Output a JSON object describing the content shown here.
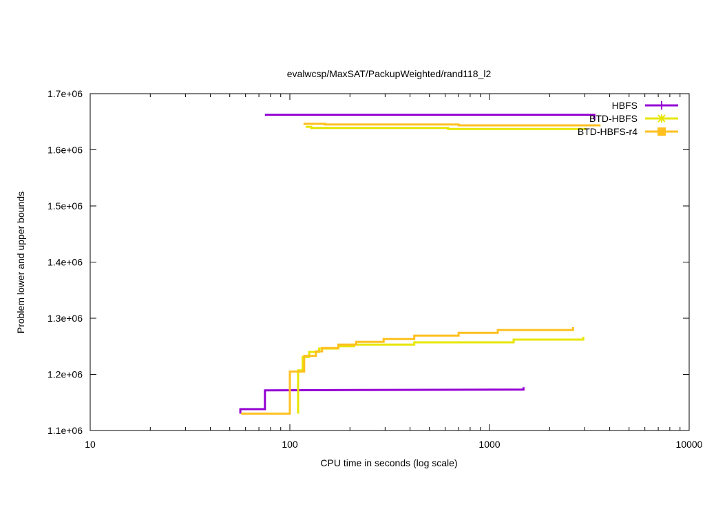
{
  "chart_data": {
    "type": "line",
    "title": "evalwcsp/MaxSAT/PackupWeighted/rand118_l2",
    "xlabel": "CPU time in seconds (log scale)",
    "ylabel": "Problem lower and upper bounds",
    "xscale": "log",
    "xlim": [
      10,
      10000
    ],
    "ylim": [
      1100000,
      1700000
    ],
    "xticks": [
      10,
      100,
      1000,
      10000
    ],
    "xtick_labels": [
      "10",
      "100",
      "1000",
      "10000"
    ],
    "yticks": [
      1100000,
      1200000,
      1300000,
      1400000,
      1500000,
      1600000,
      1700000
    ],
    "ytick_labels": [
      "1.1e+06",
      "1.2e+06",
      "1.3e+06",
      "1.4e+06",
      "1.5e+06",
      "1.6e+06",
      "1.7e+06"
    ],
    "grid": false,
    "legend_position": "top-right",
    "series": [
      {
        "name": "HBFS",
        "color": "#9400d3",
        "marker": "plus",
        "upper": [
          [
            75,
            1662500
          ],
          [
            3350,
            1662500
          ],
          [
            3350,
            1654000
          ]
        ],
        "lower": [
          [
            56.5,
            1130000
          ],
          [
            56.5,
            1138000
          ],
          [
            75,
            1138000
          ],
          [
            75,
            1171500
          ],
          [
            1480,
            1173000
          ],
          [
            1480,
            1177000
          ]
        ]
      },
      {
        "name": "BTD-HBFS",
        "color": "#e6e600",
        "marker": "x",
        "upper": [
          [
            120,
            1641000
          ],
          [
            128,
            1641000
          ],
          [
            128,
            1639000
          ],
          [
            620,
            1639000
          ],
          [
            620,
            1637000
          ],
          [
            3050,
            1637000
          ]
        ],
        "lower": [
          [
            110,
            1130000
          ],
          [
            110,
            1207000
          ],
          [
            116,
            1207000
          ],
          [
            116,
            1231000
          ],
          [
            125,
            1231000
          ],
          [
            125,
            1240000
          ],
          [
            140,
            1240000
          ],
          [
            140,
            1246000
          ],
          [
            175,
            1246000
          ],
          [
            175,
            1250000
          ],
          [
            210,
            1250000
          ],
          [
            210,
            1253000
          ],
          [
            420,
            1253000
          ],
          [
            420,
            1257000
          ],
          [
            1320,
            1257000
          ],
          [
            1320,
            1262000
          ],
          [
            2950,
            1262000
          ],
          [
            2950,
            1267000
          ]
        ]
      },
      {
        "name": "BTD-HBFS-r4",
        "color": "#ffc020",
        "marker": "square",
        "upper": [
          [
            117,
            1646500
          ],
          [
            150,
            1646500
          ],
          [
            150,
            1645000
          ],
          [
            700,
            1645000
          ],
          [
            700,
            1643500
          ],
          [
            3600,
            1643500
          ]
        ],
        "lower": [
          [
            57,
            1130000
          ],
          [
            100,
            1130000
          ],
          [
            100,
            1205000
          ],
          [
            118,
            1205000
          ],
          [
            118,
            1233000
          ],
          [
            135,
            1233000
          ],
          [
            135,
            1241000
          ],
          [
            145,
            1241000
          ],
          [
            145,
            1247000
          ],
          [
            175,
            1247000
          ],
          [
            175,
            1253000
          ],
          [
            215,
            1253000
          ],
          [
            215,
            1258000
          ],
          [
            295,
            1258000
          ],
          [
            295,
            1263000
          ],
          [
            420,
            1263000
          ],
          [
            420,
            1269000
          ],
          [
            700,
            1269000
          ],
          [
            700,
            1274000
          ],
          [
            1100,
            1274000
          ],
          [
            1100,
            1279000
          ],
          [
            2620,
            1279000
          ],
          [
            2620,
            1284000
          ]
        ]
      }
    ]
  }
}
